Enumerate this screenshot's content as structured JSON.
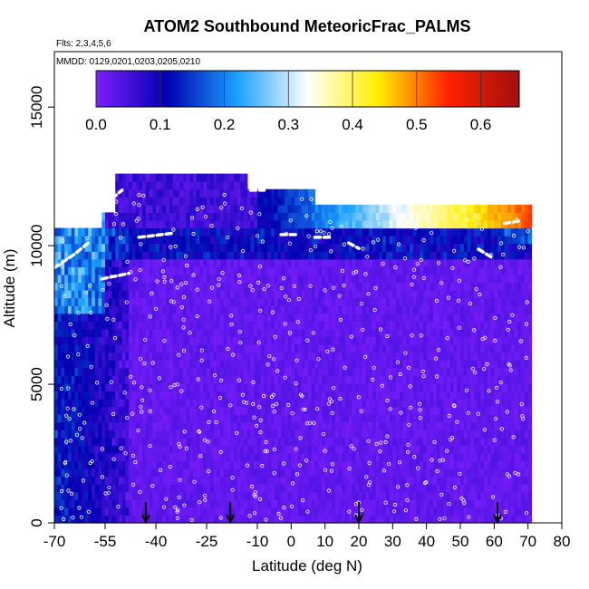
{
  "chart_data": {
    "type": "heatmap",
    "title": "ATOM2 Southbound MeteoricFrac_PALMS",
    "subtitle_flights": "Flts: 2,3,4,5,6",
    "subtitle_dates": "MMDD: 0129,0201,0203,0205,0210",
    "xlabel": "Latitude (deg N)",
    "ylabel": "Altitude (m)",
    "xlim": [
      -70,
      80
    ],
    "ylim": [
      0,
      17000
    ],
    "x_ticks": [
      -70,
      -55,
      -40,
      -25,
      -10,
      0,
      10,
      20,
      30,
      40,
      50,
      60,
      70,
      80
    ],
    "y_ticks": [
      0,
      5000,
      10000,
      15000
    ],
    "colorbar": {
      "range": [
        0,
        0.66
      ],
      "ticks": [
        0.0,
        0.1,
        0.2,
        0.3,
        0.4,
        0.5,
        0.6
      ],
      "tick_labels": [
        "0.0",
        "0.1",
        "0.2",
        "0.3",
        "0.4",
        "0.5",
        "0.6"
      ],
      "colors": [
        "#7f1fff",
        "#0000b0",
        "#1aa0ff",
        "#ffffff",
        "#ffee00",
        "#ff2000",
        "#a01010"
      ]
    },
    "profile_arrows_latitude": [
      -43,
      -18,
      20,
      61
    ],
    "field_samples": [
      {
        "x": -55,
        "y": 9500,
        "v": 0.2
      },
      {
        "x": -50,
        "y": 6000,
        "v": 0.12
      },
      {
        "x": -5,
        "y": 11800,
        "v": 0.1
      },
      {
        "x": 30,
        "y": 11800,
        "v": 0.25
      },
      {
        "x": 60,
        "y": 10900,
        "v": 0.58
      },
      {
        "x": 20,
        "y": 3000,
        "v": 0.03
      }
    ]
  }
}
